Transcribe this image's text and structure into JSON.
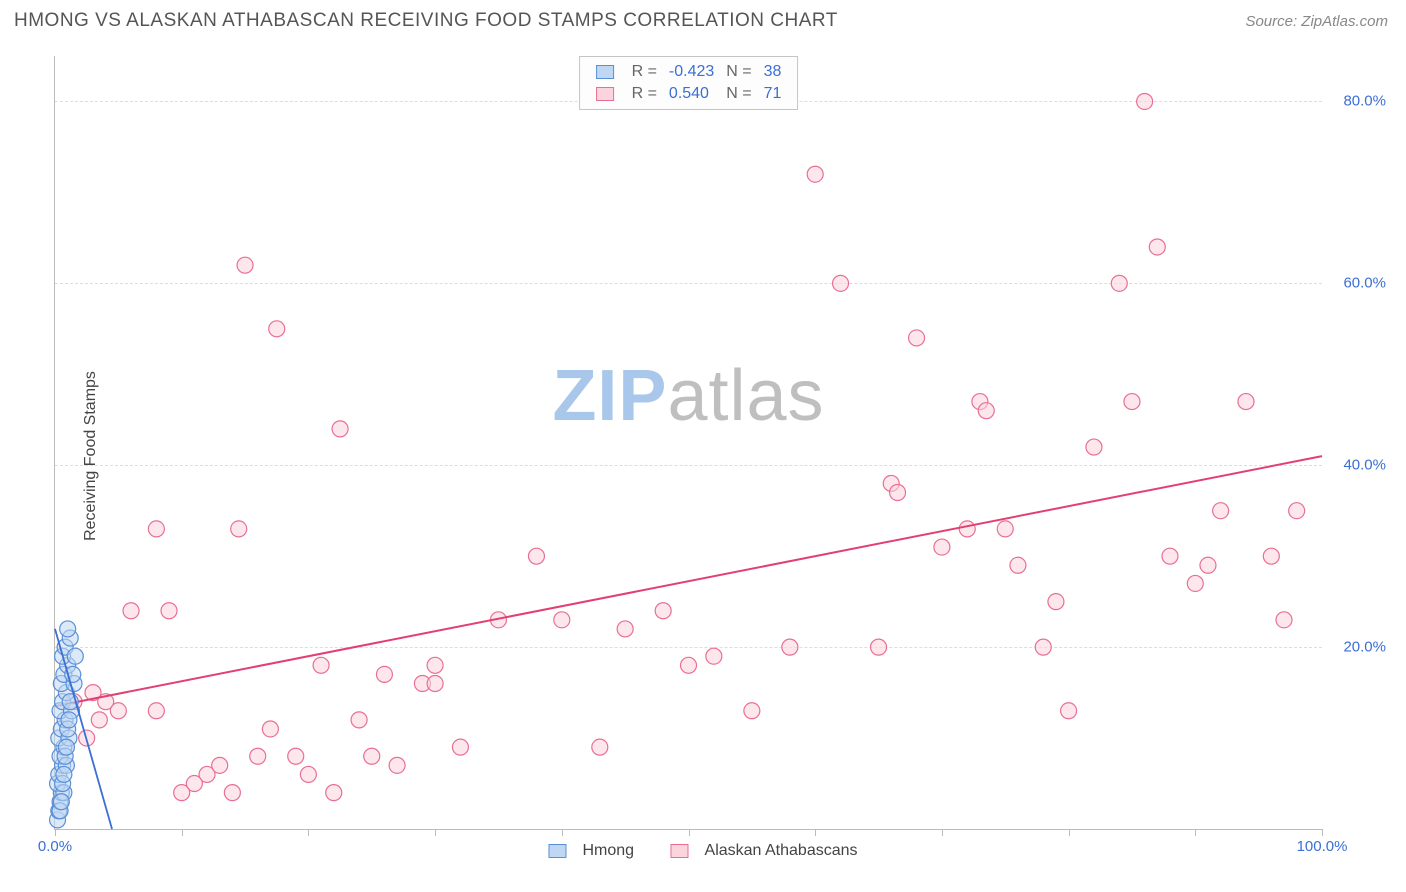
{
  "title": "HMONG VS ALASKAN ATHABASCAN RECEIVING FOOD STAMPS CORRELATION CHART",
  "source_label": "Source: ZipAtlas.com",
  "ylabel": "Receiving Food Stamps",
  "watermark_a": "ZIP",
  "watermark_b": "atlas",
  "watermark_color_a": "#a9c7ea",
  "watermark_color_b": "#bfbfbf",
  "chart": {
    "type": "scatter",
    "xlim": [
      0,
      100
    ],
    "ylim": [
      0,
      85
    ],
    "x_tick_positions": [
      0,
      10,
      20,
      30,
      40,
      50,
      60,
      70,
      80,
      90,
      100
    ],
    "x_tick_labels": {
      "0": "0.0%",
      "100": "100.0%"
    },
    "y_gridlines": [
      20,
      40,
      60,
      80
    ],
    "y_tick_labels": {
      "20": "20.0%",
      "40": "40.0%",
      "60": "60.0%",
      "80": "80.0%"
    },
    "axis_label_color": "#3b6fd4",
    "grid_color": "#dddddd",
    "background_color": "#ffffff",
    "marker_radius": 8,
    "marker_stroke_width": 1.2,
    "series": [
      {
        "name": "Hmong",
        "fill": "#c0d7f3",
        "stroke": "#5a8fd8",
        "fill_opacity": 0.55,
        "R": "-0.423",
        "N": "38",
        "trend": {
          "x1": 0,
          "y1": 22,
          "x2": 4.5,
          "y2": 0,
          "color": "#3b6fd4",
          "width": 1.8
        },
        "points": [
          [
            0.2,
            1
          ],
          [
            0.3,
            2
          ],
          [
            0.4,
            3
          ],
          [
            0.5,
            4
          ],
          [
            0.2,
            5
          ],
          [
            0.3,
            6
          ],
          [
            0.6,
            7
          ],
          [
            0.4,
            8
          ],
          [
            0.7,
            9
          ],
          [
            0.3,
            10
          ],
          [
            0.5,
            11
          ],
          [
            0.8,
            12
          ],
          [
            0.4,
            13
          ],
          [
            0.6,
            14
          ],
          [
            0.9,
            15
          ],
          [
            0.5,
            16
          ],
          [
            0.7,
            17
          ],
          [
            1.0,
            18
          ],
          [
            0.6,
            19
          ],
          [
            0.8,
            20
          ],
          [
            1.2,
            21
          ],
          [
            1.0,
            22
          ],
          [
            0.7,
            4
          ],
          [
            0.9,
            7
          ],
          [
            1.1,
            10
          ],
          [
            1.3,
            13
          ],
          [
            1.5,
            16
          ],
          [
            0.4,
            2
          ],
          [
            0.6,
            5
          ],
          [
            0.8,
            8
          ],
          [
            1.0,
            11
          ],
          [
            1.2,
            14
          ],
          [
            1.4,
            17
          ],
          [
            1.6,
            19
          ],
          [
            0.5,
            3
          ],
          [
            0.7,
            6
          ],
          [
            0.9,
            9
          ],
          [
            1.1,
            12
          ]
        ]
      },
      {
        "name": "Alaskan Athabascans",
        "fill": "#fcd4de",
        "stroke": "#e86f93",
        "fill_opacity": 0.55,
        "R": "0.540",
        "N": "71",
        "trend": {
          "x1": 0,
          "y1": 13.5,
          "x2": 100,
          "y2": 41,
          "color": "#e23f72",
          "width": 2
        },
        "points": [
          [
            1.5,
            14
          ],
          [
            2.5,
            10
          ],
          [
            3,
            15
          ],
          [
            3.5,
            12
          ],
          [
            4,
            14
          ],
          [
            5,
            13
          ],
          [
            6,
            24
          ],
          [
            8,
            33
          ],
          [
            9,
            24
          ],
          [
            10,
            4
          ],
          [
            12,
            6
          ],
          [
            14,
            4
          ],
          [
            14.5,
            33
          ],
          [
            15,
            62
          ],
          [
            16,
            8
          ],
          [
            17,
            11
          ],
          [
            17.5,
            55
          ],
          [
            19,
            8
          ],
          [
            20,
            6
          ],
          [
            21,
            18
          ],
          [
            22,
            4
          ],
          [
            22.5,
            44
          ],
          [
            24,
            12
          ],
          [
            25,
            8
          ],
          [
            26,
            17
          ],
          [
            27,
            7
          ],
          [
            29,
            16
          ],
          [
            30,
            18
          ],
          [
            32,
            9
          ],
          [
            35,
            23
          ],
          [
            38,
            30
          ],
          [
            40,
            23
          ],
          [
            43,
            9
          ],
          [
            48,
            24
          ],
          [
            50,
            18
          ],
          [
            52,
            19
          ],
          [
            55,
            13
          ],
          [
            58,
            20
          ],
          [
            60,
            72
          ],
          [
            62,
            60
          ],
          [
            65,
            20
          ],
          [
            66,
            38
          ],
          [
            66.5,
            37
          ],
          [
            68,
            54
          ],
          [
            70,
            31
          ],
          [
            72,
            33
          ],
          [
            73,
            47
          ],
          [
            73.5,
            46
          ],
          [
            75,
            33
          ],
          [
            76,
            29
          ],
          [
            78,
            20
          ],
          [
            79,
            25
          ],
          [
            80,
            13
          ],
          [
            82,
            42
          ],
          [
            84,
            60
          ],
          [
            85,
            47
          ],
          [
            86,
            80
          ],
          [
            87,
            64
          ],
          [
            88,
            30
          ],
          [
            90,
            27
          ],
          [
            91,
            29
          ],
          [
            92,
            35
          ],
          [
            94,
            47
          ],
          [
            96,
            30
          ],
          [
            97,
            23
          ],
          [
            98,
            35
          ],
          [
            8,
            13
          ],
          [
            11,
            5
          ],
          [
            13,
            7
          ],
          [
            30,
            16
          ],
          [
            45,
            22
          ]
        ]
      }
    ]
  },
  "legend_stats": {
    "header_R": "R =",
    "header_N": "N =",
    "value_color": "#3b6fd4",
    "label_color": "#666666"
  },
  "legend_bottom": {
    "items": [
      "Hmong",
      "Alaskan Athabascans"
    ]
  }
}
